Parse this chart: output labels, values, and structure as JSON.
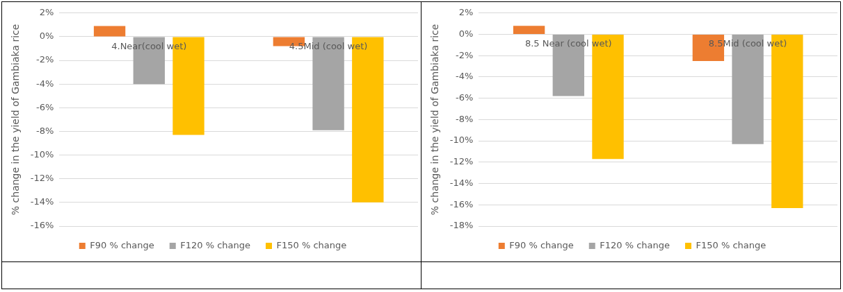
{
  "chart_data": [
    {
      "type": "bar",
      "ylabel": "% change in the yield of Gambiaka rice",
      "categories": [
        "4.Near(cool wet)",
        "4.5Mid (cool wet)"
      ],
      "series": [
        {
          "name": "F90 % change",
          "color": "#ed7d31",
          "values": [
            0.9,
            -0.8
          ]
        },
        {
          "name": "F120 % change",
          "color": "#a5a5a5",
          "values": [
            -4.0,
            -7.9
          ]
        },
        {
          "name": "F150 % change",
          "color": "#ffc000",
          "values": [
            -8.3,
            -14.0
          ]
        }
      ],
      "ylim": [
        -16,
        2
      ],
      "yticks": [
        {
          "value": -16,
          "label": "-16%"
        },
        {
          "value": -14,
          "label": "-14%"
        },
        {
          "value": -12,
          "label": "-12%"
        },
        {
          "value": -10,
          "label": "-10%"
        },
        {
          "value": -8,
          "label": "-8%"
        },
        {
          "value": -6,
          "label": "-6%"
        },
        {
          "value": -4,
          "label": "-4%"
        },
        {
          "value": -2,
          "label": "-2%"
        },
        {
          "value": 0,
          "label": "0%"
        },
        {
          "value": 2,
          "label": "2%"
        }
      ],
      "grid": "y",
      "legend": "bottom"
    },
    {
      "type": "bar",
      "ylabel": "% change in the yield of Gambiaka rice",
      "categories": [
        "8.5 Near (cool wet)",
        "8.5Mid (cool wet)"
      ],
      "series": [
        {
          "name": "F90 % change",
          "color": "#ed7d31",
          "values": [
            0.8,
            -2.5
          ]
        },
        {
          "name": "F120 % change",
          "color": "#a5a5a5",
          "values": [
            -5.8,
            -10.3
          ]
        },
        {
          "name": "F150 % change",
          "color": "#ffc000",
          "values": [
            -11.7,
            -16.3
          ]
        }
      ],
      "ylim": [
        -18,
        2
      ],
      "yticks": [
        {
          "value": -18,
          "label": "-18%"
        },
        {
          "value": -16,
          "label": "-16%"
        },
        {
          "value": -14,
          "label": "-14%"
        },
        {
          "value": -12,
          "label": "-12%"
        },
        {
          "value": -10,
          "label": "-10%"
        },
        {
          "value": -8,
          "label": "-8%"
        },
        {
          "value": -6,
          "label": "-6%"
        },
        {
          "value": -4,
          "label": "-4%"
        },
        {
          "value": -2,
          "label": "-2%"
        },
        {
          "value": 0,
          "label": "0%"
        },
        {
          "value": 2,
          "label": "2%"
        }
      ],
      "grid": "y",
      "legend": "bottom"
    }
  ]
}
